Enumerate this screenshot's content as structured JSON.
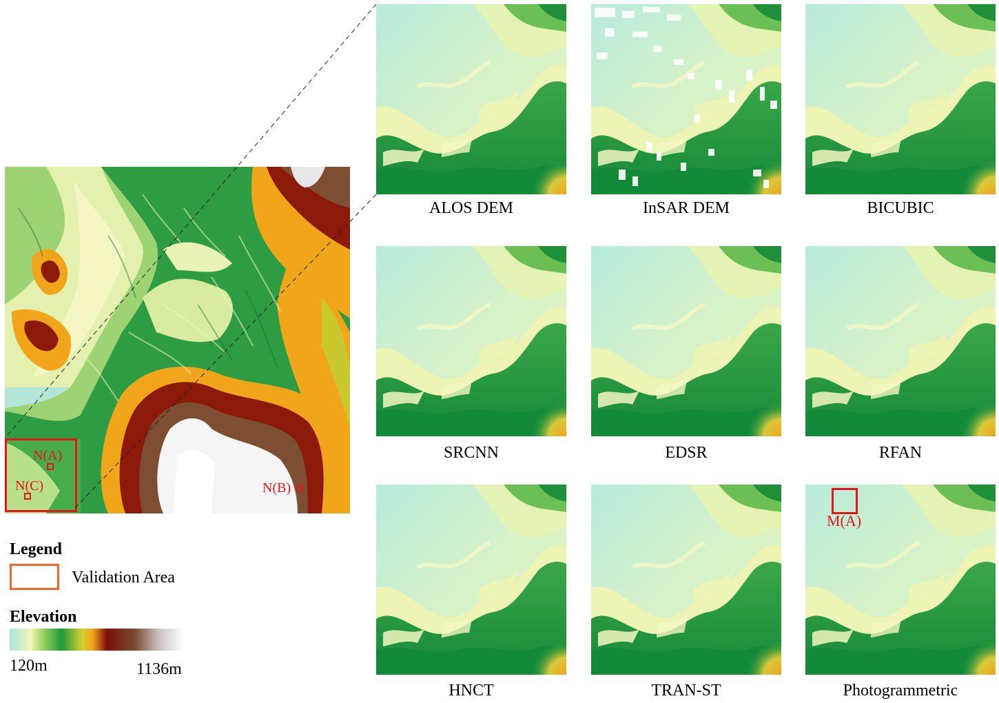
{
  "overview_map": {
    "validation_areas": [
      {
        "label": "N(A)"
      },
      {
        "label": "N(B)"
      },
      {
        "label": "N(C)"
      }
    ]
  },
  "panels": [
    {
      "id": "alos",
      "caption": "ALOS DEM"
    },
    {
      "id": "insar",
      "caption": "InSAR DEM"
    },
    {
      "id": "bicubic",
      "caption": "BICUBIC"
    },
    {
      "id": "srcnn",
      "caption": "SRCNN"
    },
    {
      "id": "edsr",
      "caption": "EDSR"
    },
    {
      "id": "rfan",
      "caption": "RFAN"
    },
    {
      "id": "hnct",
      "caption": "HNCT"
    },
    {
      "id": "transt",
      "caption": "TRAN-ST"
    },
    {
      "id": "photo",
      "caption": "Photogrammetric",
      "marker_label": "M(A)"
    }
  ],
  "legend": {
    "title": "Legend",
    "validation_area_label": "Validation Area",
    "elevation_title": "Elevation",
    "min_label": "120m",
    "max_label": "1136m",
    "colors": {
      "validation_box": "#f26522",
      "marker_red": "#e8141b",
      "ramp": [
        "#a8e6d9",
        "#f7f7b5",
        "#1e9a3a",
        "#f0a51a",
        "#7a0f0a",
        "#8b5a3c",
        "#ffffff"
      ]
    }
  }
}
